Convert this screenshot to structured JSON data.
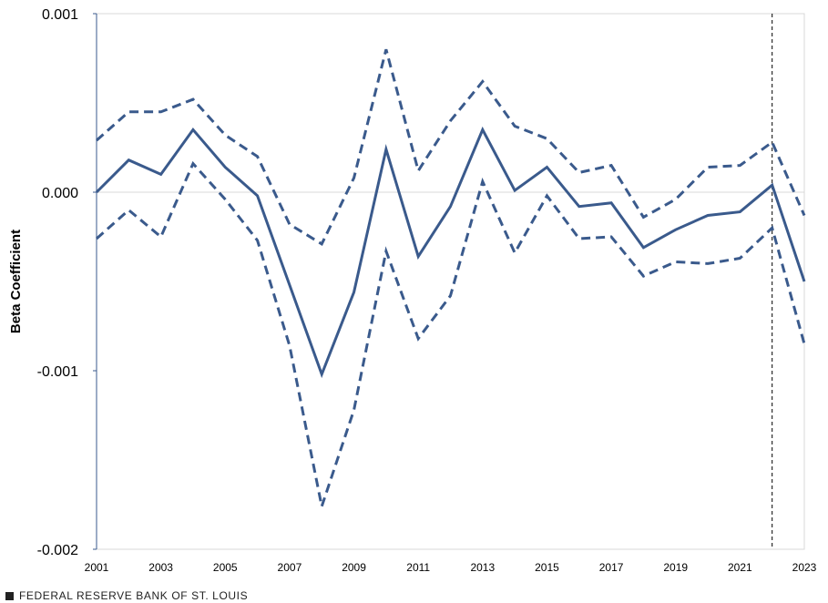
{
  "chart_data": {
    "type": "line",
    "title": "",
    "xlabel": "",
    "ylabel": "Beta Coefficient",
    "x": [
      2001,
      2002,
      2003,
      2004,
      2005,
      2006,
      2007,
      2008,
      2009,
      2010,
      2011,
      2012,
      2013,
      2014,
      2015,
      2016,
      2017,
      2018,
      2019,
      2020,
      2021,
      2022,
      2023
    ],
    "x_tick_labels": [
      "2001",
      "2003",
      "2005",
      "2007",
      "2009",
      "2011",
      "2013",
      "2015",
      "2017",
      "2019",
      "2021",
      "2023"
    ],
    "y_tick_labels": [
      "0.001",
      "0.000",
      "-0.001",
      "-0.002"
    ],
    "ylim": [
      -0.002,
      0.001
    ],
    "xlim": [
      2001,
      2023
    ],
    "series": [
      {
        "role": "estimate",
        "style": "solid",
        "color": "#3a5a8c",
        "values": [
          0.0,
          0.00018,
          0.0001,
          0.00035,
          0.00014,
          -2e-05,
          -0.00052,
          -0.00102,
          -0.00056,
          0.00024,
          -0.00036,
          -8e-05,
          0.00035,
          1e-05,
          0.00014,
          -8e-05,
          -6e-05,
          -0.00031,
          -0.00021,
          -0.00013,
          -0.00011,
          4e-05,
          -0.0005
        ]
      },
      {
        "role": "upper-bound",
        "style": "dashed",
        "color": "#3a5a8c",
        "values": [
          0.00029,
          0.00045,
          0.00045,
          0.00052,
          0.00032,
          0.0002,
          -0.00018,
          -0.00029,
          8e-05,
          0.0008,
          0.00012,
          0.0004,
          0.00062,
          0.00037,
          0.0003,
          0.00011,
          0.00015,
          -0.00014,
          -4e-05,
          0.00014,
          0.00015,
          0.00028,
          -0.00013
        ]
      },
      {
        "role": "lower-bound",
        "style": "dashed",
        "color": "#3a5a8c",
        "values": [
          -0.00026,
          -0.0001,
          -0.00025,
          0.00016,
          -4e-05,
          -0.00027,
          -0.00086,
          -0.00176,
          -0.00122,
          -0.00033,
          -0.00082,
          -0.00058,
          6e-05,
          -0.00034,
          -2e-05,
          -0.00026,
          -0.00025,
          -0.00047,
          -0.00039,
          -0.0004,
          -0.00037,
          -0.0002,
          -0.00085
        ]
      }
    ],
    "vertical_marker_x": 2022,
    "grid": false,
    "zero_line": true
  },
  "footer": {
    "source": "FEDERAL RESERVE BANK OF ST. LOUIS"
  },
  "colors": {
    "series": "#3a5a8c",
    "axis": "#3a5a8c",
    "frame": "#d9d9d9",
    "zero_line": "#d9d9d9",
    "marker_line": "#000000"
  }
}
